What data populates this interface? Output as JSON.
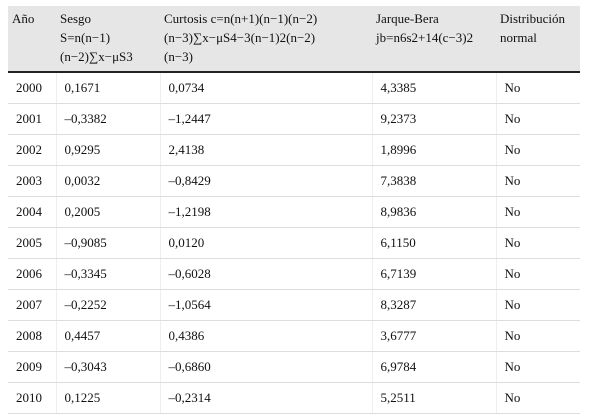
{
  "table": {
    "header": [
      [
        "Año"
      ],
      [
        "Sesgo",
        "S=n(n−1)",
        "(n−2)∑x−μS3"
      ],
      [
        "Curtosis c=n(n+1)(n−1)(n−2)",
        "(n−3)∑x−μS4−3(n−1)2(n−2)",
        "(n−3)"
      ],
      [
        "Jarque-Bera",
        "jb=n6s2+14(c−3)2"
      ],
      [
        "Distribución",
        "normal"
      ]
    ],
    "rows": [
      [
        "2000",
        "0,1671",
        "0,0734",
        "4,3385",
        "No"
      ],
      [
        "2001",
        "–0,3382",
        "–1,2447",
        "9,2373",
        "No"
      ],
      [
        "2002",
        "0,9295",
        "2,4138",
        "1,8996",
        "No"
      ],
      [
        "2003",
        "0,0032",
        "–0,8429",
        "7,3838",
        "No"
      ],
      [
        "2004",
        "0,2005",
        "–1,2198",
        "8,9836",
        "No"
      ],
      [
        "2005",
        "–0,9085",
        "0,0120",
        "6,1150",
        "No"
      ],
      [
        "2006",
        "–0,3345",
        "–0,6028",
        "6,7139",
        "No"
      ],
      [
        "2007",
        "–0,2252",
        "–1,0564",
        "8,3287",
        "No"
      ],
      [
        "2008",
        "0,4457",
        "0,4386",
        "3,6777",
        "No"
      ],
      [
        "2009",
        "–0,3043",
        "–0,6860",
        "6,9784",
        "No"
      ],
      [
        "2010",
        "0,1225",
        "–0,2314",
        "5,2511",
        "No"
      ]
    ]
  }
}
